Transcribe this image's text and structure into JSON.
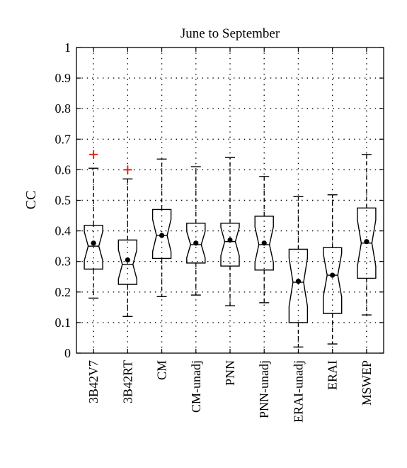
{
  "chart_data": {
    "type": "box",
    "title": "June to September",
    "xlabel": "",
    "ylabel": "CC",
    "ylim": [
      0,
      1
    ],
    "yticks": [
      0,
      0.1,
      0.2,
      0.3,
      0.4,
      0.5,
      0.6,
      0.7,
      0.8,
      0.9,
      1
    ],
    "ytick_labels": [
      "0",
      "0.1",
      "0.2",
      "0.3",
      "0.4",
      "0.5",
      "0.6",
      "0.7",
      "0.8",
      "0.9",
      "1"
    ],
    "grid": true,
    "notched": true,
    "categories": [
      "3B42V7",
      "3B42RT",
      "CM",
      "CM-unadj",
      "PNN",
      "PNN-unadj",
      "ERAI-unadj",
      "ERAI",
      "MSWEP"
    ],
    "boxes": [
      {
        "name": "3B42V7",
        "whisker_low": 0.18,
        "q1": 0.275,
        "median": 0.35,
        "q3": 0.418,
        "whisker_high": 0.605,
        "mean": 0.36,
        "outliers": [
          0.65
        ]
      },
      {
        "name": "3B42RT",
        "whisker_low": 0.12,
        "q1": 0.225,
        "median": 0.29,
        "q3": 0.37,
        "whisker_high": 0.57,
        "mean": 0.305,
        "outliers": [
          0.6
        ]
      },
      {
        "name": "CM",
        "whisker_low": 0.185,
        "q1": 0.31,
        "median": 0.385,
        "q3": 0.47,
        "whisker_high": 0.635,
        "mean": 0.385,
        "outliers": []
      },
      {
        "name": "CM-unadj",
        "whisker_low": 0.19,
        "q1": 0.295,
        "median": 0.355,
        "q3": 0.425,
        "whisker_high": 0.61,
        "mean": 0.36,
        "outliers": []
      },
      {
        "name": "PNN",
        "whisker_low": 0.155,
        "q1": 0.285,
        "median": 0.365,
        "q3": 0.425,
        "whisker_high": 0.64,
        "mean": 0.37,
        "outliers": []
      },
      {
        "name": "PNN-unadj",
        "whisker_low": 0.165,
        "q1": 0.272,
        "median": 0.355,
        "q3": 0.448,
        "whisker_high": 0.578,
        "mean": 0.36,
        "outliers": []
      },
      {
        "name": "ERAI-unadj",
        "whisker_low": 0.02,
        "q1": 0.1,
        "median": 0.232,
        "q3": 0.34,
        "whisker_high": 0.512,
        "mean": 0.235,
        "outliers": []
      },
      {
        "name": "ERAI",
        "whisker_low": 0.03,
        "q1": 0.13,
        "median": 0.255,
        "q3": 0.345,
        "whisker_high": 0.518,
        "mean": 0.255,
        "outliers": []
      },
      {
        "name": "MSWEP",
        "whisker_low": 0.125,
        "q1": 0.245,
        "median": 0.36,
        "q3": 0.475,
        "whisker_high": 0.65,
        "mean": 0.365,
        "outliers": []
      }
    ],
    "colors": {
      "box": "#000000",
      "outlier": "#e8211b",
      "mean": "#000000",
      "grid": "#000000"
    }
  }
}
